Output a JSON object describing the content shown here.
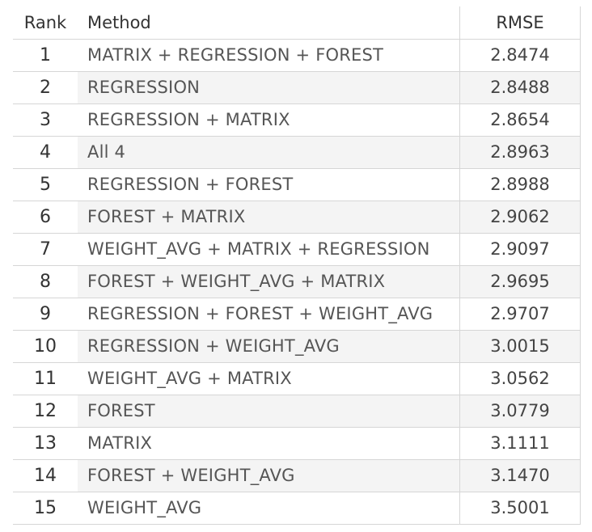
{
  "chart_data": {
    "type": "table",
    "columns": [
      "Rank",
      "Method",
      "RMSE"
    ],
    "rows": [
      {
        "rank": "1",
        "method": "MATRIX + REGRESSION + FOREST",
        "rmse": "2.8474"
      },
      {
        "rank": "2",
        "method": "REGRESSION",
        "rmse": "2.8488"
      },
      {
        "rank": "3",
        "method": "REGRESSION + MATRIX",
        "rmse": "2.8654"
      },
      {
        "rank": "4",
        "method": "All 4",
        "rmse": "2.8963"
      },
      {
        "rank": "5",
        "method": "REGRESSION + FOREST",
        "rmse": "2.8988"
      },
      {
        "rank": "6",
        "method": "FOREST + MATRIX",
        "rmse": "2.9062"
      },
      {
        "rank": "7",
        "method": "WEIGHT_AVG + MATRIX + REGRESSION",
        "rmse": "2.9097"
      },
      {
        "rank": "8",
        "method": "FOREST + WEIGHT_AVG + MATRIX",
        "rmse": "2.9695"
      },
      {
        "rank": "9",
        "method": "REGRESSION + FOREST + WEIGHT_AVG",
        "rmse": "2.9707"
      },
      {
        "rank": "10",
        "method": "REGRESSION + WEIGHT_AVG",
        "rmse": "3.0015"
      },
      {
        "rank": "11",
        "method": "WEIGHT_AVG + MATRIX",
        "rmse": "3.0562"
      },
      {
        "rank": "12",
        "method": "FOREST",
        "rmse": "3.0779"
      },
      {
        "rank": "13",
        "method": "MATRIX",
        "rmse": "3.1111"
      },
      {
        "rank": "14",
        "method": "FOREST + WEIGHT_AVG",
        "rmse": "3.1470"
      },
      {
        "rank": "15",
        "method": "WEIGHT_AVG",
        "rmse": "3.5001"
      }
    ]
  }
}
